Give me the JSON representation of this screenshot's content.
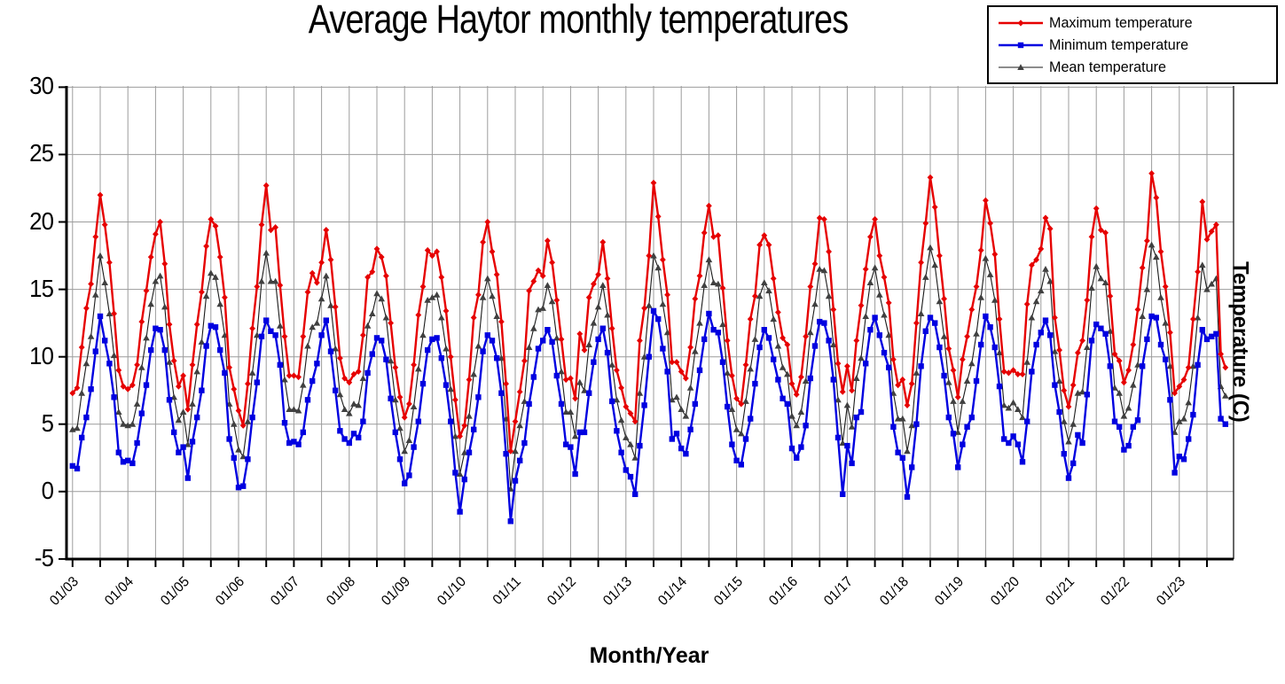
{
  "page": {
    "title": "Average Haytor monthly temperatures"
  },
  "axes": {
    "x_title": "Month/Year",
    "y_title": "Temperature (C)"
  },
  "legend": {
    "items": [
      "Maximum temperature",
      "Minimum temperature",
      "Mean temperature"
    ]
  },
  "chart_data": {
    "type": "line",
    "title": "Average Haytor monthly temperatures",
    "xlabel": "Month/Year",
    "ylabel": "Temperature (C)",
    "ylim": [
      -5,
      30
    ],
    "y_ticks": [
      30,
      25,
      20,
      15,
      10,
      5,
      0,
      -5
    ],
    "y_tick_labels": [
      "30",
      "25",
      "20",
      "15",
      "10",
      "5",
      "0",
      "-5"
    ],
    "grid": "on",
    "legend_position": "top-right",
    "x_unit": "month",
    "x_start_label": "01/03",
    "x_tick_labels": [
      "01/03",
      "01/04",
      "01/05",
      "01/06",
      "01/07",
      "01/08",
      "01/09",
      "01/10",
      "01/11",
      "01/12",
      "01/13",
      "01/14",
      "01/15",
      "01/16",
      "01/17",
      "01/18",
      "01/19",
      "01/20",
      "01/21",
      "01/22",
      "01/23"
    ],
    "x_ticks_every_months": 6,
    "x_labels_every_months": 12,
    "colors": {
      "grid": "#9c9c9c",
      "axis": "#000000"
    },
    "series": [
      {
        "name": "Maximum temperature",
        "color": "#e60000",
        "line_width": 2.4,
        "marker": "diamond",
        "values": [
          7.3,
          7.7,
          10.7,
          13.6,
          15.4,
          18.9,
          22.0,
          19.8,
          17.0,
          13.2,
          9.0,
          7.8,
          7.6,
          7.9,
          9.4,
          12.6,
          14.9,
          17.4,
          19.1,
          20.0,
          16.9,
          12.4,
          9.7,
          7.8,
          8.6,
          6.1,
          9.4,
          12.4,
          14.8,
          18.2,
          20.2,
          19.7,
          17.4,
          14.4,
          9.2,
          7.6,
          6.0,
          4.9,
          8.0,
          12.1,
          15.2,
          19.8,
          22.7,
          19.4,
          19.6,
          15.3,
          11.5,
          8.6,
          8.6,
          8.5,
          11.5,
          14.8,
          16.2,
          15.5,
          17.0,
          19.4,
          17.2,
          13.7,
          9.9,
          8.4,
          8.1,
          8.7,
          8.9,
          11.6,
          15.9,
          16.3,
          18.0,
          17.4,
          16.0,
          12.5,
          9.2,
          7.0,
          5.5,
          6.5,
          9.4,
          13.1,
          15.2,
          17.9,
          17.5,
          17.8,
          15.9,
          13.4,
          10.0,
          6.8,
          4.1,
          4.9,
          8.3,
          12.9,
          14.6,
          18.5,
          20.0,
          17.8,
          16.1,
          12.6,
          8.0,
          3.0,
          5.2,
          7.4,
          9.7,
          14.9,
          15.6,
          16.4,
          16.0,
          18.6,
          17.0,
          14.2,
          11.3,
          8.3,
          8.4,
          6.9,
          11.7,
          10.5,
          14.4,
          15.4,
          16.1,
          18.5,
          15.8,
          12.1,
          9.0,
          7.7,
          6.3,
          5.8,
          5.2,
          11.2,
          13.6,
          17.5,
          22.9,
          20.4,
          17.2,
          14.6,
          9.6,
          9.6,
          8.9,
          8.4,
          10.7,
          14.3,
          16.0,
          19.2,
          21.2,
          18.9,
          19.0,
          15.1,
          11.2,
          8.6,
          6.9,
          6.5,
          9.4,
          12.8,
          14.5,
          18.3,
          19.0,
          18.3,
          15.8,
          13.3,
          11.4,
          10.9,
          8.0,
          7.2,
          8.5,
          11.5,
          15.2,
          16.9,
          20.3,
          20.2,
          17.8,
          13.5,
          9.5,
          7.4,
          9.3,
          7.5,
          11.2,
          13.8,
          16.5,
          18.9,
          20.2,
          17.5,
          15.9,
          14.0,
          9.8,
          7.9,
          8.3,
          6.4,
          8.0,
          12.5,
          17.0,
          19.9,
          23.3,
          21.1,
          17.5,
          14.3,
          10.6,
          9.0,
          7.0,
          9.8,
          11.5,
          13.5,
          15.2,
          17.9,
          21.6,
          19.9,
          17.6,
          12.8,
          8.9,
          8.8,
          9.0,
          8.7,
          8.7,
          13.9,
          16.8,
          17.2,
          18.0,
          20.3,
          19.5,
          12.9,
          10.5,
          7.5,
          6.3,
          7.9,
          10.3,
          11.2,
          14.2,
          18.9,
          21.0,
          19.4,
          19.2,
          14.5,
          10.2,
          9.7,
          8.1,
          9.0,
          10.9,
          13.5,
          16.6,
          18.6,
          23.6,
          21.8,
          17.8,
          15.2,
          11.8,
          7.3,
          7.8,
          8.3,
          9.2,
          12.8,
          16.3,
          21.5,
          18.7,
          19.3,
          19.8,
          10.2,
          9.2
        ]
      },
      {
        "name": "Minimum temperature",
        "color": "#0000e0",
        "line_width": 2.4,
        "marker": "square",
        "values": [
          1.9,
          1.7,
          4.0,
          5.5,
          7.6,
          10.4,
          13.0,
          11.2,
          9.5,
          7.0,
          2.9,
          2.2,
          2.3,
          2.1,
          3.6,
          5.8,
          7.9,
          10.5,
          12.1,
          12.0,
          10.5,
          6.8,
          4.4,
          2.9,
          3.3,
          1.0,
          3.7,
          5.5,
          7.5,
          10.8,
          12.3,
          12.2,
          10.5,
          8.8,
          3.9,
          2.5,
          0.3,
          0.4,
          2.4,
          5.5,
          8.1,
          11.5,
          12.7,
          11.9,
          11.6,
          9.4,
          5.1,
          3.6,
          3.7,
          3.5,
          4.4,
          6.8,
          8.2,
          9.5,
          11.6,
          12.7,
          10.4,
          7.5,
          4.5,
          3.9,
          3.6,
          4.3,
          4.0,
          5.2,
          8.8,
          10.2,
          11.4,
          11.2,
          9.8,
          6.9,
          4.4,
          2.4,
          0.6,
          1.2,
          3.3,
          5.2,
          8.0,
          10.5,
          11.3,
          11.4,
          9.9,
          7.9,
          5.2,
          1.4,
          -1.5,
          0.9,
          2.9,
          4.6,
          7.0,
          10.4,
          11.6,
          11.2,
          9.9,
          7.3,
          2.8,
          -2.2,
          0.8,
          2.3,
          3.6,
          6.5,
          8.5,
          10.6,
          11.2,
          12.0,
          11.1,
          8.6,
          6.5,
          3.5,
          3.3,
          1.3,
          4.4,
          4.4,
          7.3,
          9.6,
          11.3,
          12.1,
          10.3,
          6.7,
          4.5,
          2.9,
          1.6,
          1.1,
          -0.2,
          3.4,
          6.4,
          10.0,
          13.4,
          12.8,
          10.6,
          8.9,
          3.9,
          4.3,
          3.2,
          2.8,
          4.6,
          6.5,
          9.0,
          11.3,
          13.2,
          12.0,
          11.8,
          9.6,
          6.3,
          3.5,
          2.3,
          2.0,
          3.9,
          5.4,
          8.0,
          10.7,
          12.0,
          11.4,
          9.8,
          8.3,
          6.9,
          6.5,
          3.2,
          2.5,
          3.3,
          4.9,
          8.4,
          10.8,
          12.6,
          12.5,
          11.2,
          8.3,
          4.0,
          -0.2,
          3.4,
          2.1,
          5.5,
          5.9,
          9.5,
          12.0,
          12.9,
          11.6,
          10.3,
          9.2,
          4.8,
          2.9,
          2.5,
          -0.4,
          1.8,
          5.0,
          9.3,
          11.9,
          12.9,
          12.5,
          10.7,
          8.6,
          5.5,
          4.3,
          1.8,
          3.5,
          4.8,
          5.5,
          8.2,
          10.9,
          13.0,
          12.2,
          10.7,
          7.8,
          3.9,
          3.6,
          4.1,
          3.5,
          2.2,
          5.2,
          8.9,
          10.9,
          11.8,
          12.7,
          11.6,
          7.9,
          5.9,
          2.8,
          1.0,
          2.1,
          4.2,
          3.6,
          7.2,
          11.2,
          12.4,
          12.1,
          11.7,
          9.3,
          5.2,
          4.8,
          3.1,
          3.4,
          4.8,
          5.3,
          9.3,
          11.3,
          13.0,
          12.9,
          10.9,
          9.8,
          6.8,
          1.4,
          2.6,
          2.4,
          3.9,
          5.7,
          9.4,
          12.0,
          11.3,
          11.5,
          11.7,
          5.4,
          5.0
        ]
      },
      {
        "name": "Mean temperature",
        "color": "#404040",
        "line_color": "#1a1a1a",
        "line_width": 1.1,
        "marker": "triangle",
        "values": [
          4.6,
          4.7,
          7.3,
          9.5,
          11.5,
          14.6,
          17.5,
          15.5,
          13.2,
          10.1,
          5.9,
          5.0,
          4.9,
          5.0,
          6.5,
          9.2,
          11.4,
          13.9,
          15.6,
          16.0,
          13.7,
          9.6,
          7.0,
          5.3,
          5.9,
          3.5,
          6.5,
          8.9,
          11.1,
          14.5,
          16.2,
          15.9,
          13.9,
          11.6,
          6.5,
          5.0,
          3.1,
          2.6,
          5.2,
          8.8,
          11.6,
          15.6,
          17.7,
          15.6,
          15.6,
          12.3,
          8.3,
          6.1,
          6.1,
          6.0,
          7.9,
          10.8,
          12.2,
          12.5,
          14.3,
          16.0,
          13.8,
          10.6,
          7.2,
          6.1,
          5.8,
          6.5,
          6.4,
          8.4,
          12.3,
          13.2,
          14.7,
          14.3,
          12.9,
          9.7,
          6.8,
          4.7,
          3.0,
          3.8,
          6.3,
          9.1,
          11.6,
          14.2,
          14.4,
          14.6,
          12.9,
          10.6,
          7.6,
          4.1,
          1.3,
          2.9,
          5.6,
          8.7,
          10.8,
          14.4,
          15.8,
          14.5,
          13.0,
          9.9,
          5.4,
          0.2,
          3.0,
          4.9,
          6.7,
          10.7,
          12.1,
          13.5,
          13.6,
          15.3,
          14.1,
          11.4,
          8.9,
          5.9,
          5.9,
          4.1,
          8.1,
          7.5,
          10.9,
          12.5,
          13.7,
          15.3,
          13.1,
          9.4,
          6.8,
          5.3,
          4.0,
          3.5,
          2.5,
          7.3,
          10.0,
          13.8,
          17.5,
          16.6,
          13.9,
          11.8,
          6.8,
          7.0,
          6.1,
          5.6,
          7.7,
          10.4,
          12.5,
          15.3,
          17.2,
          15.5,
          15.4,
          12.4,
          8.8,
          6.1,
          4.6,
          4.3,
          6.7,
          9.1,
          11.3,
          14.5,
          15.5,
          14.9,
          12.8,
          10.8,
          9.2,
          8.7,
          5.6,
          4.9,
          5.9,
          8.2,
          11.8,
          13.9,
          16.5,
          16.4,
          14.5,
          10.9,
          6.8,
          3.6,
          6.4,
          4.8,
          8.4,
          9.9,
          13.0,
          15.5,
          16.6,
          14.6,
          13.1,
          11.6,
          7.3,
          5.4,
          5.4,
          3.0,
          4.9,
          8.8,
          13.2,
          15.9,
          18.1,
          16.8,
          14.1,
          11.5,
          8.1,
          6.7,
          4.4,
          6.7,
          8.2,
          9.5,
          11.7,
          14.4,
          17.3,
          16.1,
          14.2,
          10.3,
          6.4,
          6.2,
          6.6,
          6.1,
          5.5,
          9.6,
          12.9,
          14.1,
          14.9,
          16.5,
          15.6,
          10.4,
          8.2,
          5.2,
          3.7,
          5.0,
          7.3,
          7.4,
          10.7,
          15.1,
          16.7,
          15.8,
          15.5,
          11.9,
          7.7,
          7.3,
          5.6,
          6.2,
          7.9,
          9.4,
          13.0,
          15.0,
          18.3,
          17.4,
          14.4,
          12.5,
          9.3,
          4.4,
          5.2,
          5.4,
          6.6,
          9.3,
          12.9,
          16.8,
          15.0,
          15.4,
          15.8,
          7.8,
          7.1
        ]
      }
    ]
  }
}
